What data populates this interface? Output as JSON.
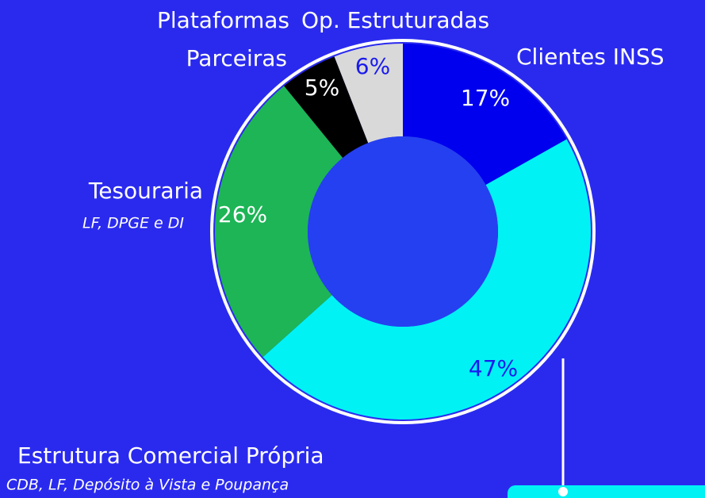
{
  "chart_data": {
    "type": "donut",
    "categories": [
      "Clientes INSS",
      "Estrutura Comercial Própria",
      "Tesouraria",
      "Plataformas Parceiras",
      "Op. Estruturadas"
    ],
    "values": [
      17,
      47,
      26,
      5,
      6
    ],
    "value_labels": [
      "17%",
      "47%",
      "26%",
      "5%",
      "6%"
    ],
    "colors": [
      "#0000ee",
      "#00f2f5",
      "#1db556",
      "#000000",
      "#d9d9d9"
    ],
    "annotations": [
      "CDB, LF, Depósito à Vista e Poupança",
      "LF, DPGE e DI"
    ]
  }
}
